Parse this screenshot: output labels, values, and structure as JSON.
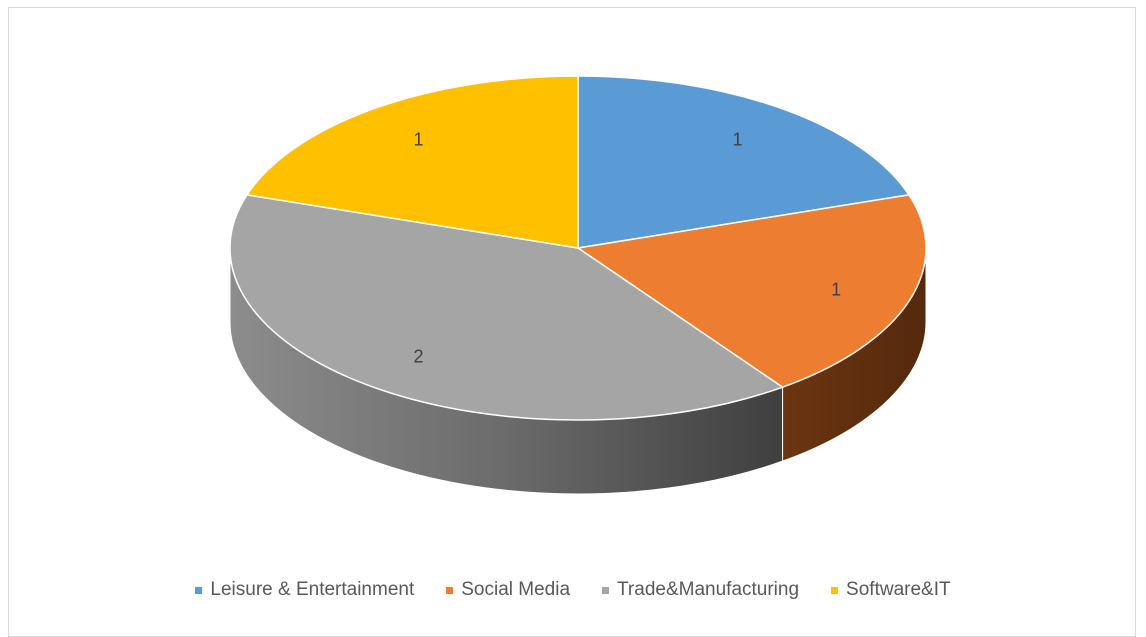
{
  "chart_data": {
    "type": "pie",
    "style": "3d",
    "title": "",
    "categories": [
      "Leisure & Entertainment",
      "Social Media",
      "Trade&Manufacturing",
      "Software&IT"
    ],
    "values": [
      1,
      1,
      2,
      1
    ],
    "data_labels": [
      "1",
      "1",
      "2",
      "1"
    ],
    "colors": [
      "#5b9bd5",
      "#ed7d31",
      "#a5a5a5",
      "#ffc000"
    ],
    "legend_position": "bottom"
  }
}
